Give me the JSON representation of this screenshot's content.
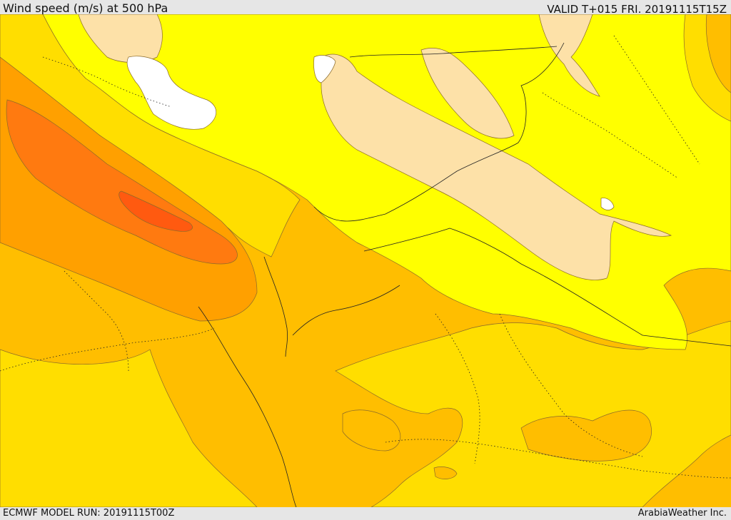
{
  "header": {
    "title": "Wind speed (m/s) at 500 hPa",
    "valid": "VALID T+015 FRI. 20191115T15Z"
  },
  "footer": {
    "model_run": "ECMWF MODEL RUN: 20191115T00Z",
    "credit": "ArabiaWeather Inc."
  },
  "colors": {
    "calm": "#ffffff",
    "light": "#fde1a8",
    "yellow": "#ffff00",
    "gold": "#ffde00",
    "amber": "#ffbe00",
    "orange": "#ffa000",
    "deep_orange": "#ff7a10",
    "red_orange": "#ff5a10"
  }
}
